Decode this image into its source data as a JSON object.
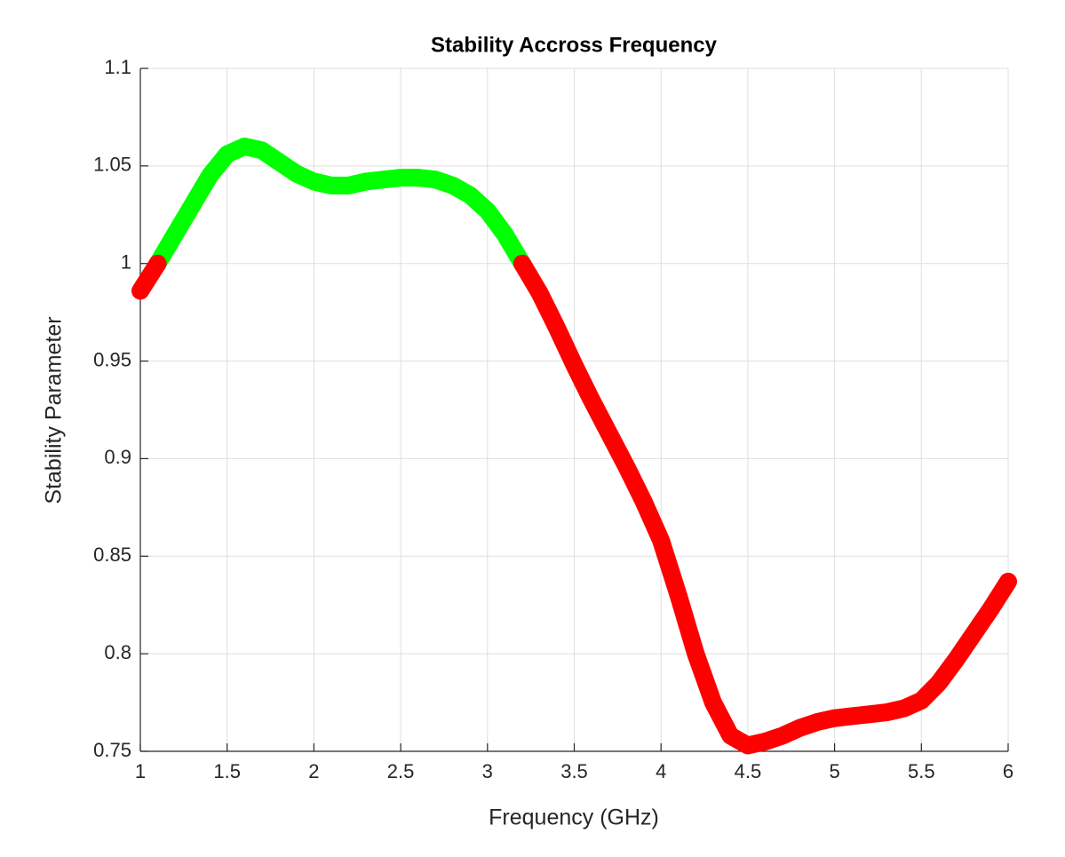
{
  "chart_data": {
    "type": "line",
    "title": "Stability Accross Frequency",
    "x_label": "Frequency (GHz)",
    "y_label": "Stability Parameter",
    "x": [
      1.0,
      1.1,
      1.2,
      1.3,
      1.4,
      1.5,
      1.6,
      1.7,
      1.8,
      1.9,
      2.0,
      2.1,
      2.2,
      2.3,
      2.4,
      2.5,
      2.6,
      2.7,
      2.8,
      2.9,
      3.0,
      3.1,
      3.2,
      3.3,
      3.4,
      3.5,
      3.6,
      3.7,
      3.8,
      3.9,
      4.0,
      4.1,
      4.2,
      4.3,
      4.4,
      4.5,
      4.6,
      4.7,
      4.8,
      4.9,
      5.0,
      5.1,
      5.2,
      5.3,
      5.4,
      5.5,
      5.6,
      5.7,
      5.8,
      5.9,
      6.0
    ],
    "series": [
      {
        "color": "#00ff00",
        "values": [
          null,
          1.0,
          1.015,
          1.03,
          1.045,
          1.056,
          1.06,
          1.058,
          1.052,
          1.046,
          1.042,
          1.04,
          1.04,
          1.042,
          1.043,
          1.044,
          1.044,
          1.043,
          1.04,
          1.035,
          1.027,
          1.015,
          1.0,
          null,
          null,
          null,
          null,
          null,
          null,
          null,
          null,
          null,
          null,
          null,
          null,
          null,
          null,
          null,
          null,
          null,
          null,
          null,
          null,
          null,
          null,
          null,
          null,
          null,
          null,
          null,
          null
        ]
      },
      {
        "color": "#ff0000",
        "values": [
          0.986,
          1.0,
          null,
          null,
          null,
          null,
          null,
          null,
          null,
          null,
          null,
          null,
          null,
          null,
          null,
          null,
          null,
          null,
          null,
          null,
          null,
          null,
          1.0,
          0.985,
          0.967,
          0.948,
          0.93,
          0.913,
          0.896,
          0.878,
          0.858,
          0.83,
          0.8,
          0.775,
          0.758,
          0.753,
          0.755,
          0.758,
          0.762,
          0.765,
          0.767,
          0.768,
          0.769,
          0.77,
          0.772,
          0.776,
          0.785,
          0.797,
          0.81,
          0.823,
          0.837
        ]
      }
    ],
    "xlim": [
      1,
      6
    ],
    "ylim": [
      0.75,
      1.1
    ],
    "xticks": [
      1,
      1.5,
      2,
      2.5,
      3,
      3.5,
      4,
      4.5,
      5,
      5.5,
      6
    ],
    "yticks": [
      0.75,
      0.8,
      0.85,
      0.9,
      0.95,
      1,
      1.05,
      1.1
    ],
    "grid": true
  }
}
